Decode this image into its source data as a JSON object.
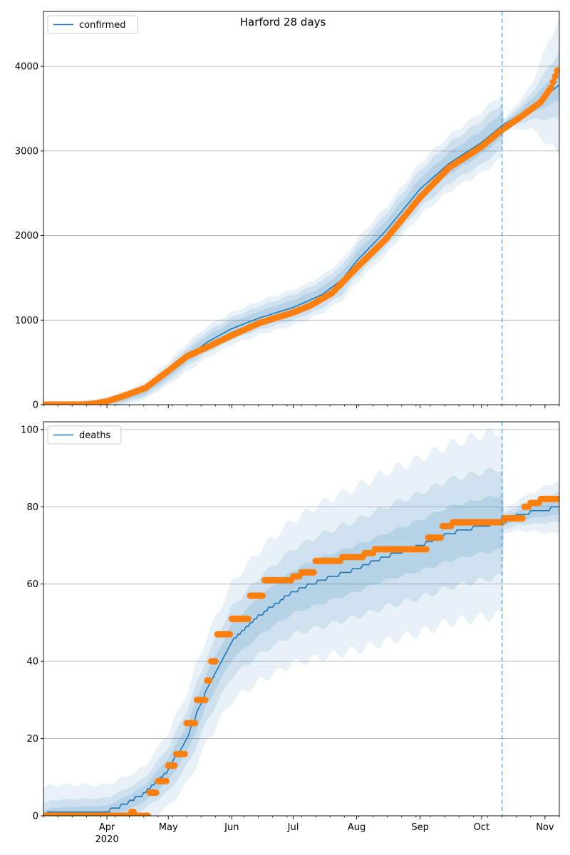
{
  "title": "Harford 28 days",
  "colors": {
    "model": "#1f77b4",
    "observed": "#ff7f0e",
    "band": "#1f77b4",
    "grid": "#b0b0b0",
    "vline": "#1f77b4"
  },
  "x_axis": {
    "type": "date",
    "start": "2020-03-01",
    "end": "2020-11-08",
    "month_ticks": [
      {
        "date": "2020-04-01",
        "label": "Apr"
      },
      {
        "date": "2020-05-01",
        "label": "May"
      },
      {
        "date": "2020-06-01",
        "label": "Jun"
      },
      {
        "date": "2020-07-01",
        "label": "Jul"
      },
      {
        "date": "2020-08-01",
        "label": "Aug"
      },
      {
        "date": "2020-09-01",
        "label": "Sep"
      },
      {
        "date": "2020-10-01",
        "label": "Oct"
      },
      {
        "date": "2020-11-01",
        "label": "Nov"
      }
    ],
    "year_label": {
      "date": "2020-04-01",
      "label": "2020"
    },
    "forecast_start": "2020-10-11"
  },
  "chart_data": [
    {
      "type": "line",
      "legend": "confirmed",
      "legend_position": "upper-left",
      "ylim": [
        0,
        4650
      ],
      "yticks": [
        0,
        1000,
        2000,
        3000,
        4000
      ],
      "grid": "y",
      "model": [
        [
          "2020-03-01",
          0
        ],
        [
          "2020-03-25",
          5
        ],
        [
          "2020-04-01",
          30
        ],
        [
          "2020-04-10",
          80
        ],
        [
          "2020-04-20",
          170
        ],
        [
          "2020-05-01",
          370
        ],
        [
          "2020-05-10",
          560
        ],
        [
          "2020-05-20",
          740
        ],
        [
          "2020-06-01",
          900
        ],
        [
          "2020-06-15",
          1030
        ],
        [
          "2020-07-01",
          1150
        ],
        [
          "2020-07-15",
          1300
        ],
        [
          "2020-07-25",
          1480
        ],
        [
          "2020-08-01",
          1700
        ],
        [
          "2020-08-15",
          2050
        ],
        [
          "2020-09-01",
          2550
        ],
        [
          "2020-09-15",
          2850
        ],
        [
          "2020-10-01",
          3100
        ],
        [
          "2020-10-11",
          3300
        ],
        [
          "2020-10-20",
          3430
        ],
        [
          "2020-11-01",
          3650
        ],
        [
          "2020-11-08",
          3780
        ]
      ],
      "bands": [
        {
          "level": 1,
          "half_width": [
            [
              "2020-03-01",
              5
            ],
            [
              "2020-04-20",
              40
            ],
            [
              "2020-05-15",
              70
            ],
            [
              "2020-06-15",
              80
            ],
            [
              "2020-07-15",
              90
            ],
            [
              "2020-08-15",
              110
            ],
            [
              "2020-09-15",
              130
            ],
            [
              "2020-10-11",
              150
            ],
            [
              "2020-10-12",
              20
            ],
            [
              "2020-10-25",
              80
            ],
            [
              "2020-11-08",
              180
            ]
          ]
        },
        {
          "level": 2,
          "half_width": [
            [
              "2020-03-01",
              10
            ],
            [
              "2020-04-20",
              70
            ],
            [
              "2020-05-15",
              120
            ],
            [
              "2020-06-15",
              140
            ],
            [
              "2020-07-15",
              160
            ],
            [
              "2020-08-15",
              200
            ],
            [
              "2020-09-15",
              240
            ],
            [
              "2020-10-11",
              270
            ],
            [
              "2020-10-12",
              40
            ],
            [
              "2020-10-25",
              150
            ],
            [
              "2020-11-08",
              400
            ]
          ]
        },
        {
          "level": 3,
          "half_width": [
            [
              "2020-03-01",
              15
            ],
            [
              "2020-04-20",
              100
            ],
            [
              "2020-05-15",
              180
            ],
            [
              "2020-06-15",
              200
            ],
            [
              "2020-07-15",
              220
            ],
            [
              "2020-08-15",
              280
            ],
            [
              "2020-09-15",
              330
            ],
            [
              "2020-10-11",
              380
            ],
            [
              "2020-10-12",
              60
            ],
            [
              "2020-10-25",
              250
            ],
            [
              "2020-11-08",
              820
            ]
          ]
        }
      ],
      "observed": [
        [
          "2020-03-01",
          0
        ],
        [
          "2020-03-20",
          2
        ],
        [
          "2020-03-25",
          10
        ],
        [
          "2020-04-01",
          40
        ],
        [
          "2020-04-10",
          110
        ],
        [
          "2020-04-20",
          200
        ],
        [
          "2020-05-01",
          400
        ],
        [
          "2020-05-10",
          570
        ],
        [
          "2020-05-20",
          680
        ],
        [
          "2020-06-01",
          820
        ],
        [
          "2020-06-15",
          970
        ],
        [
          "2020-07-01",
          1090
        ],
        [
          "2020-07-10",
          1180
        ],
        [
          "2020-07-20",
          1320
        ],
        [
          "2020-08-01",
          1620
        ],
        [
          "2020-08-15",
          1950
        ],
        [
          "2020-09-01",
          2450
        ],
        [
          "2020-09-15",
          2800
        ],
        [
          "2020-10-01",
          3050
        ],
        [
          "2020-10-11",
          3250
        ],
        [
          "2020-10-20",
          3400
        ],
        [
          "2020-10-30",
          3580
        ],
        [
          "2020-11-04",
          3750
        ],
        [
          "2020-11-07",
          3950
        ]
      ]
    },
    {
      "type": "line",
      "legend": "deaths",
      "legend_position": "upper-left",
      "ylim": [
        0,
        102
      ],
      "yticks": [
        0,
        20,
        40,
        60,
        80,
        100
      ],
      "grid": "y",
      "model": [
        [
          "2020-03-01",
          0
        ],
        [
          "2020-03-05",
          1
        ],
        [
          "2020-04-01",
          1
        ],
        [
          "2020-04-05",
          2
        ],
        [
          "2020-04-10",
          3
        ],
        [
          "2020-04-20",
          6
        ],
        [
          "2020-05-01",
          12
        ],
        [
          "2020-05-10",
          20
        ],
        [
          "2020-05-20",
          33
        ],
        [
          "2020-06-01",
          45
        ],
        [
          "2020-06-15",
          52
        ],
        [
          "2020-07-01",
          58
        ],
        [
          "2020-07-15",
          61
        ],
        [
          "2020-08-01",
          64
        ],
        [
          "2020-08-15",
          67
        ],
        [
          "2020-09-01",
          70
        ],
        [
          "2020-09-15",
          73
        ],
        [
          "2020-10-01",
          75
        ],
        [
          "2020-10-11",
          76
        ],
        [
          "2020-10-20",
          78
        ],
        [
          "2020-11-08",
          80
        ]
      ],
      "bands": [
        {
          "level": 1,
          "half_width": [
            [
              "2020-03-01",
              1
            ],
            [
              "2020-04-20",
              2
            ],
            [
              "2020-05-15",
              4
            ],
            [
              "2020-06-15",
              5
            ],
            [
              "2020-07-15",
              6
            ],
            [
              "2020-08-15",
              6
            ],
            [
              "2020-09-15",
              7
            ],
            [
              "2020-10-11",
              7
            ],
            [
              "2020-10-12",
              1
            ],
            [
              "2020-11-08",
              2
            ]
          ]
        },
        {
          "level": 2,
          "half_width": [
            [
              "2020-03-01",
              3
            ],
            [
              "2020-04-20",
              4
            ],
            [
              "2020-05-15",
              8
            ],
            [
              "2020-06-15",
              10
            ],
            [
              "2020-07-15",
              12
            ],
            [
              "2020-08-15",
              13
            ],
            [
              "2020-09-15",
              14
            ],
            [
              "2020-10-11",
              14
            ],
            [
              "2020-10-12",
              2
            ],
            [
              "2020-11-08",
              4
            ]
          ]
        },
        {
          "level": 3,
          "half_width": [
            [
              "2020-03-01",
              7
            ],
            [
              "2020-04-20",
              7
            ],
            [
              "2020-05-15",
              13
            ],
            [
              "2020-06-15",
              17
            ],
            [
              "2020-07-15",
              20
            ],
            [
              "2020-08-15",
              22
            ],
            [
              "2020-09-15",
              23
            ],
            [
              "2020-10-11",
              24
            ],
            [
              "2020-10-12",
              3
            ],
            [
              "2020-11-08",
              7
            ]
          ]
        }
      ],
      "observed": [
        [
          "2020-03-01",
          0
        ],
        [
          "2020-04-12",
          0
        ],
        [
          "2020-04-13",
          1
        ],
        [
          "2020-04-15",
          0
        ],
        [
          "2020-04-20",
          0
        ],
        [
          "2020-04-22",
          6
        ],
        [
          "2020-04-26",
          9
        ],
        [
          "2020-05-01",
          13
        ],
        [
          "2020-05-05",
          16
        ],
        [
          "2020-05-10",
          24
        ],
        [
          "2020-05-15",
          30
        ],
        [
          "2020-05-20",
          35
        ],
        [
          "2020-05-22",
          40
        ],
        [
          "2020-05-25",
          47
        ],
        [
          "2020-06-01",
          51
        ],
        [
          "2020-06-10",
          57
        ],
        [
          "2020-06-17",
          61
        ],
        [
          "2020-07-01",
          62
        ],
        [
          "2020-07-05",
          63
        ],
        [
          "2020-07-12",
          66
        ],
        [
          "2020-07-25",
          67
        ],
        [
          "2020-08-05",
          68
        ],
        [
          "2020-08-10",
          69
        ],
        [
          "2020-08-31",
          69
        ],
        [
          "2020-09-05",
          72
        ],
        [
          "2020-09-12",
          75
        ],
        [
          "2020-09-17",
          76
        ],
        [
          "2020-10-10",
          76
        ],
        [
          "2020-10-12",
          77
        ],
        [
          "2020-10-18",
          77
        ],
        [
          "2020-10-22",
          80
        ],
        [
          "2020-10-25",
          81
        ],
        [
          "2020-10-30",
          82
        ],
        [
          "2020-11-08",
          82
        ]
      ]
    }
  ]
}
